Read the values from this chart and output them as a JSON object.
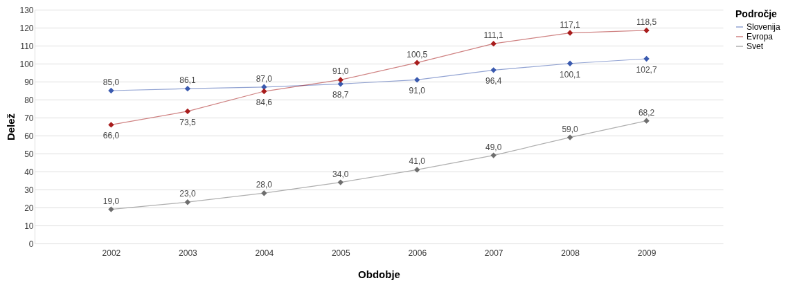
{
  "chart_data": {
    "type": "line",
    "xlabel": "Obdobje",
    "ylabel": "Delež",
    "legend_title": "Področje",
    "categories": [
      "2002",
      "2003",
      "2004",
      "2005",
      "2006",
      "2007",
      "2008",
      "2009"
    ],
    "series": [
      {
        "name": "Slovenija",
        "color": "#3a5aaf",
        "values": [
          85.0,
          86.1,
          87.0,
          88.7,
          91.0,
          96.4,
          100.1,
          102.7
        ],
        "value_labels": [
          "85,0",
          "86,1",
          "87,0",
          "88,7",
          "91,0",
          "96,4",
          "100,1",
          "102,7"
        ]
      },
      {
        "name": "Evropa",
        "color": "#a81c1c",
        "values": [
          66.0,
          73.5,
          84.6,
          91.0,
          100.5,
          111.1,
          117.1,
          118.5
        ],
        "value_labels": [
          "66,0",
          "73,5",
          "84,6",
          "91,0",
          "100,5",
          "111,1",
          "117,1",
          "118,5"
        ]
      },
      {
        "name": "Svet",
        "color": "#6e6e6e",
        "values": [
          19.0,
          23.0,
          28.0,
          34.0,
          41.0,
          49.0,
          59.0,
          68.2
        ],
        "value_labels": [
          "19,0",
          "23,0",
          "28,0",
          "34,0",
          "41,0",
          "49,0",
          "59,0",
          "68,2"
        ]
      }
    ],
    "ylim": [
      0,
      130
    ],
    "yticks": [
      0,
      10,
      20,
      30,
      40,
      50,
      60,
      70,
      80,
      90,
      100,
      110,
      120,
      130
    ],
    "grid": "y",
    "legend": "top right",
    "marker": "diamond",
    "line_style": "solid"
  }
}
